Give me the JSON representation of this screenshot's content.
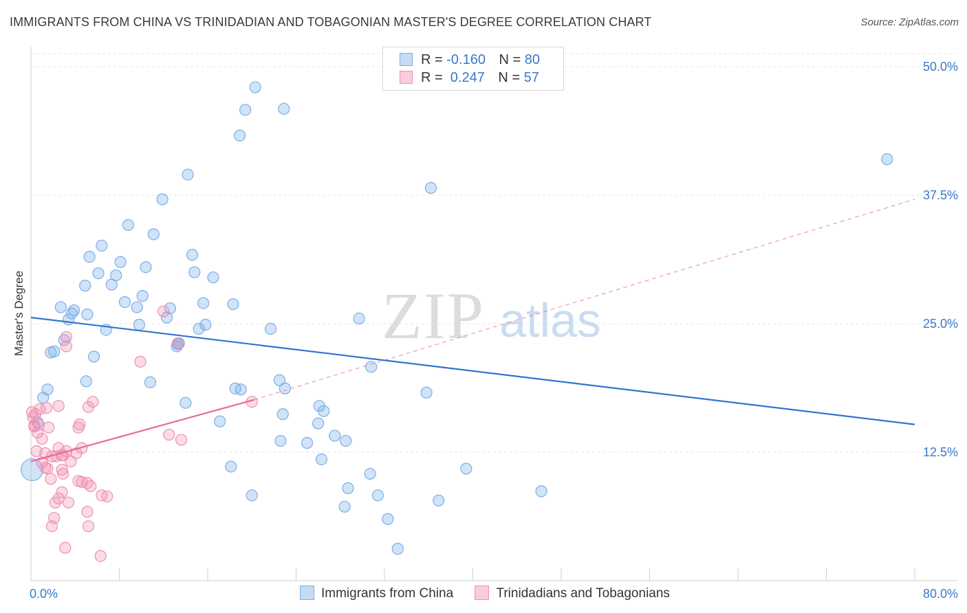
{
  "header": {
    "title": "IMMIGRANTS FROM CHINA VS TRINIDADIAN AND TOBAGONIAN MASTER'S DEGREE CORRELATION CHART",
    "source": "Source: ZipAtlas.com"
  },
  "watermark": {
    "zip": "ZIP",
    "atlas": "atlas"
  },
  "legend": {
    "rows": [
      {
        "r_label": "R =",
        "r_value": "-0.160",
        "n_label": "N =",
        "n_value": "80",
        "color": "#7aaee8"
      },
      {
        "r_label": "R =",
        "r_value": " 0.247",
        "n_label": "N =",
        "n_value": "57",
        "color": "#ef8fb0"
      }
    ]
  },
  "bottom_legend": {
    "items": [
      {
        "label": "Immigrants from China",
        "color": "#7aaee8"
      },
      {
        "label": "Trinidadians and Tobagonians",
        "color": "#ef8fb0"
      }
    ]
  },
  "chart_data": {
    "type": "scatter",
    "title": "IMMIGRANTS FROM CHINA VS TRINIDADIAN AND TOBAGONIAN MASTER'S DEGREE CORRELATION CHART",
    "xlabel": "",
    "ylabel": "Master's Degree",
    "xlim": [
      0,
      80
    ],
    "ylim": [
      0,
      50
    ],
    "x_tick_labels": [
      "0.0%",
      "80.0%"
    ],
    "y_ticks": [
      12.5,
      25.0,
      37.5,
      50.0
    ],
    "y_tick_labels": [
      "12.5%",
      "25.0%",
      "37.5%",
      "50.0%"
    ],
    "grid": true,
    "legend_position": "top-center",
    "series": [
      {
        "name": "Immigrants from China",
        "color": "#7aaee8",
        "line_color": "#2f74d0",
        "trend": {
          "x": [
            0,
            80
          ],
          "y": [
            25.6,
            15.2
          ],
          "style": "solid"
        },
        "points": [
          [
            20.3,
            48.0
          ],
          [
            19.4,
            45.8
          ],
          [
            22.9,
            45.9
          ],
          [
            18.9,
            43.3
          ],
          [
            77.5,
            41.0
          ],
          [
            14.2,
            39.5
          ],
          [
            36.2,
            38.2
          ],
          [
            11.9,
            37.1
          ],
          [
            8.8,
            34.6
          ],
          [
            11.1,
            33.7
          ],
          [
            6.4,
            32.6
          ],
          [
            5.3,
            31.5
          ],
          [
            14.6,
            31.7
          ],
          [
            8.1,
            31.0
          ],
          [
            10.4,
            30.5
          ],
          [
            6.1,
            29.9
          ],
          [
            7.7,
            29.7
          ],
          [
            14.8,
            30.0
          ],
          [
            16.5,
            29.5
          ],
          [
            4.9,
            28.7
          ],
          [
            7.3,
            28.8
          ],
          [
            10.1,
            27.7
          ],
          [
            8.5,
            27.1
          ],
          [
            15.6,
            27.0
          ],
          [
            18.3,
            26.9
          ],
          [
            2.7,
            26.6
          ],
          [
            3.9,
            26.3
          ],
          [
            9.6,
            26.6
          ],
          [
            12.6,
            26.5
          ],
          [
            3.7,
            26.0
          ],
          [
            5.1,
            25.9
          ],
          [
            12.3,
            25.6
          ],
          [
            29.7,
            25.5
          ],
          [
            3.4,
            25.4
          ],
          [
            9.8,
            24.9
          ],
          [
            15.8,
            24.9
          ],
          [
            6.8,
            24.4
          ],
          [
            15.2,
            24.5
          ],
          [
            21.7,
            24.5
          ],
          [
            3.0,
            23.4
          ],
          [
            13.4,
            23.1
          ],
          [
            13.2,
            22.8
          ],
          [
            2.1,
            22.3
          ],
          [
            1.8,
            22.2
          ],
          [
            5.7,
            21.8
          ],
          [
            30.8,
            20.8
          ],
          [
            5.0,
            19.4
          ],
          [
            22.5,
            19.5
          ],
          [
            10.8,
            19.3
          ],
          [
            1.5,
            18.6
          ],
          [
            18.5,
            18.7
          ],
          [
            23.0,
            18.7
          ],
          [
            19.0,
            18.6
          ],
          [
            35.8,
            18.3
          ],
          [
            1.1,
            17.8
          ],
          [
            14.0,
            17.3
          ],
          [
            26.1,
            17.0
          ],
          [
            26.5,
            16.5
          ],
          [
            22.8,
            16.2
          ],
          [
            17.1,
            15.5
          ],
          [
            26.0,
            15.3
          ],
          [
            0.6,
            15.4
          ],
          [
            27.5,
            14.1
          ],
          [
            22.6,
            13.6
          ],
          [
            28.5,
            13.6
          ],
          [
            25.0,
            13.4
          ],
          [
            26.3,
            11.8
          ],
          [
            18.1,
            11.1
          ],
          [
            39.4,
            10.9
          ],
          [
            30.7,
            10.4
          ],
          [
            28.7,
            9.0
          ],
          [
            46.2,
            8.7
          ],
          [
            20.0,
            8.3
          ],
          [
            31.4,
            8.3
          ],
          [
            36.9,
            7.8
          ],
          [
            28.4,
            7.2
          ],
          [
            32.3,
            6.0
          ],
          [
            33.2,
            3.1
          ],
          [
            0.1,
            10.8
          ],
          [
            13.3,
            23.0
          ]
        ]
      },
      {
        "name": "Trinidadians and Tobagonians",
        "color": "#ef8fb0",
        "line_color": "#e36b96",
        "trend": {
          "x": [
            0,
            20.2
          ],
          "y": [
            11.6,
            17.6
          ],
          "style": "solid"
        },
        "trend_extension": {
          "x": [
            20.2,
            80
          ],
          "y": [
            17.6,
            37.1
          ],
          "style": "dashed"
        },
        "points": [
          [
            12.0,
            26.2
          ],
          [
            13.3,
            23.1
          ],
          [
            3.2,
            23.7
          ],
          [
            3.2,
            22.8
          ],
          [
            9.9,
            21.3
          ],
          [
            5.6,
            17.4
          ],
          [
            2.5,
            17.0
          ],
          [
            5.2,
            16.9
          ],
          [
            0.8,
            16.7
          ],
          [
            0.4,
            16.2
          ],
          [
            1.4,
            16.8
          ],
          [
            0.2,
            15.9
          ],
          [
            0.7,
            15.2
          ],
          [
            0.3,
            15.0
          ],
          [
            4.4,
            15.2
          ],
          [
            1.6,
            14.9
          ],
          [
            4.3,
            14.9
          ],
          [
            0.6,
            14.4
          ],
          [
            12.5,
            14.2
          ],
          [
            13.6,
            13.7
          ],
          [
            1.0,
            13.8
          ],
          [
            2.5,
            12.9
          ],
          [
            4.6,
            12.9
          ],
          [
            0.5,
            12.6
          ],
          [
            3.2,
            12.6
          ],
          [
            1.3,
            12.4
          ],
          [
            4.1,
            12.4
          ],
          [
            2.8,
            12.2
          ],
          [
            1.9,
            12.1
          ],
          [
            2.3,
            12.1
          ],
          [
            3.6,
            11.6
          ],
          [
            1.0,
            11.5
          ],
          [
            1.3,
            11.0
          ],
          [
            1.5,
            10.9
          ],
          [
            2.8,
            10.8
          ],
          [
            2.9,
            10.4
          ],
          [
            1.8,
            9.9
          ],
          [
            4.3,
            9.7
          ],
          [
            4.6,
            9.6
          ],
          [
            5.1,
            9.5
          ],
          [
            5.4,
            9.2
          ],
          [
            2.8,
            8.6
          ],
          [
            6.4,
            8.3
          ],
          [
            6.9,
            8.2
          ],
          [
            2.5,
            8.0
          ],
          [
            2.2,
            7.6
          ],
          [
            3.4,
            7.6
          ],
          [
            5.1,
            6.7
          ],
          [
            2.1,
            6.1
          ],
          [
            1.9,
            5.3
          ],
          [
            5.2,
            5.3
          ],
          [
            3.1,
            3.2
          ],
          [
            6.3,
            2.4
          ],
          [
            20.0,
            17.4
          ],
          [
            0.1,
            16.4
          ],
          [
            0.3,
            15.1
          ],
          [
            2.9,
            12.2
          ]
        ]
      }
    ]
  }
}
